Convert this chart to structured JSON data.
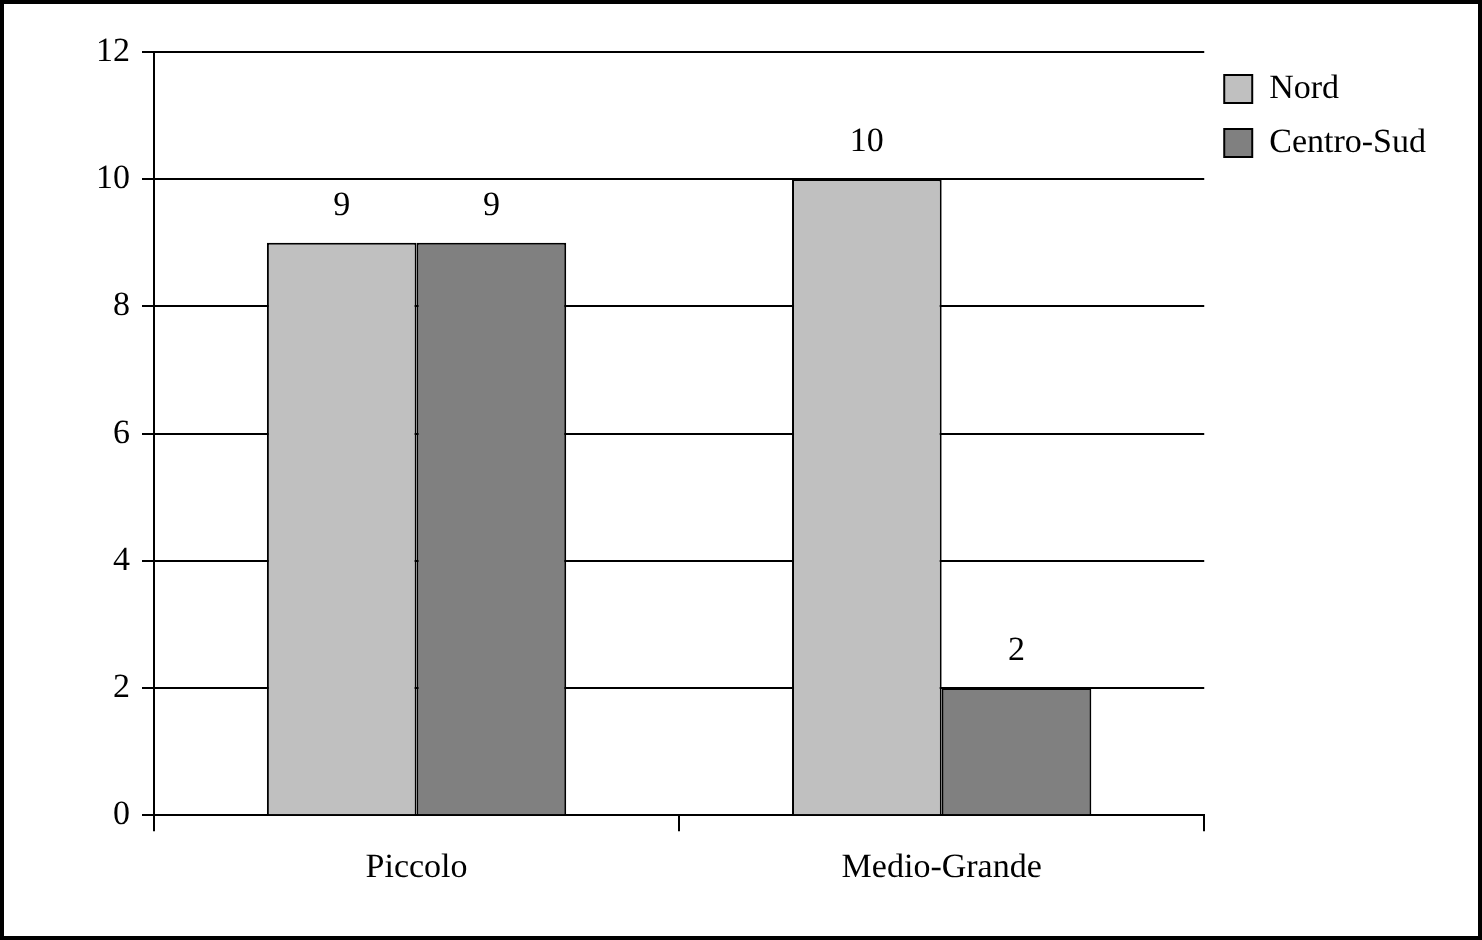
{
  "chart_data": {
    "type": "bar",
    "categories": [
      "Piccolo",
      "Medio-Grande"
    ],
    "series": [
      {
        "name": "Nord",
        "color": "#c0c0c0",
        "values": [
          9,
          10
        ]
      },
      {
        "name": "Centro-Sud",
        "color": "#808080",
        "values": [
          9,
          2
        ]
      }
    ],
    "ylim": [
      0,
      12
    ],
    "yticks": [
      0,
      2,
      4,
      6,
      8,
      10,
      12
    ],
    "grid": "y",
    "legend": "top right",
    "data_labels": true
  }
}
